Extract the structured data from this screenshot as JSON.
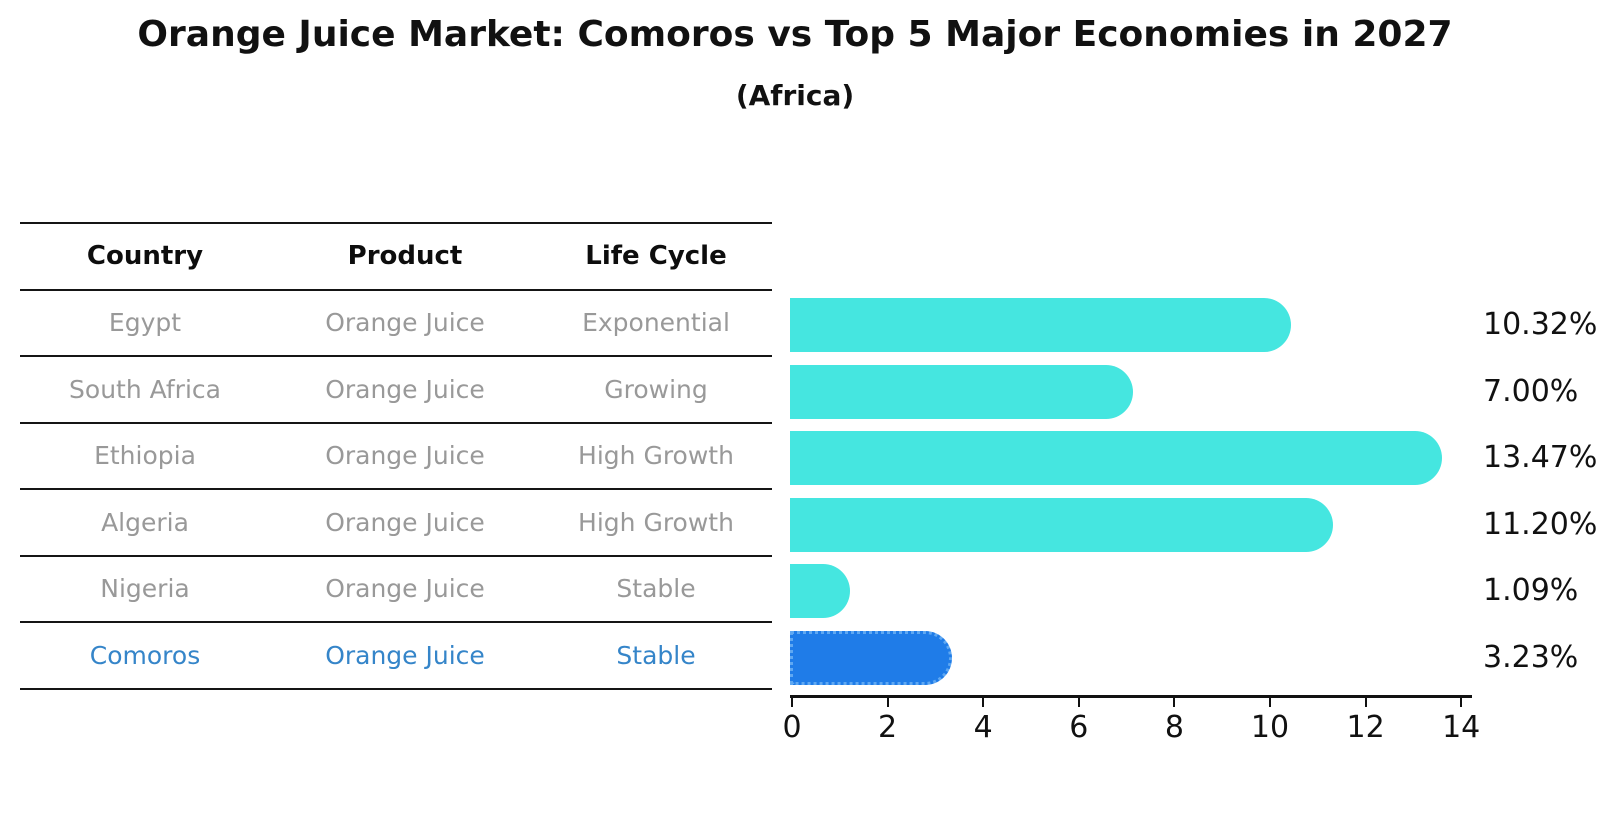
{
  "title": "Orange Juice Market: Comoros vs Top 5 Major Economies in 2027",
  "subtitle": "(Africa)",
  "table": {
    "headers": [
      "Country",
      "Product",
      "Life Cycle"
    ],
    "rows": [
      [
        "Egypt",
        "Orange Juice",
        "Exponential"
      ],
      [
        "South Africa",
        "Orange Juice",
        "Growing"
      ],
      [
        "Ethiopia",
        "Orange Juice",
        "High Growth"
      ],
      [
        "Algeria",
        "Orange Juice",
        "High Growth"
      ],
      [
        "Nigeria",
        "Orange Juice",
        "Stable"
      ],
      [
        "Comoros",
        "Orange Juice",
        "Stable"
      ]
    ],
    "highlight_row_index": 5
  },
  "chart_data": {
    "type": "bar",
    "orientation": "horizontal",
    "categories": [
      "Egypt",
      "South Africa",
      "Ethiopia",
      "Algeria",
      "Nigeria",
      "Comoros"
    ],
    "values": [
      10.32,
      7.0,
      13.47,
      11.2,
      1.09,
      3.23
    ],
    "value_labels": [
      "10.32%",
      "7.00%",
      "13.47%",
      "11.20%",
      "1.09%",
      "3.23%"
    ],
    "xlim": [
      0,
      14
    ],
    "x_ticks": [
      0,
      2,
      4,
      6,
      8,
      10,
      12,
      14
    ],
    "grid": false,
    "legend": "none",
    "highlight_index": 5
  },
  "colors": {
    "bar": "#45E6E0",
    "highlight_bar": "#1F7CE8",
    "highlight_border": "#5FA8F2",
    "muted_text": "#999999",
    "highlight_text": "#3585C9",
    "axis": "#111111"
  }
}
